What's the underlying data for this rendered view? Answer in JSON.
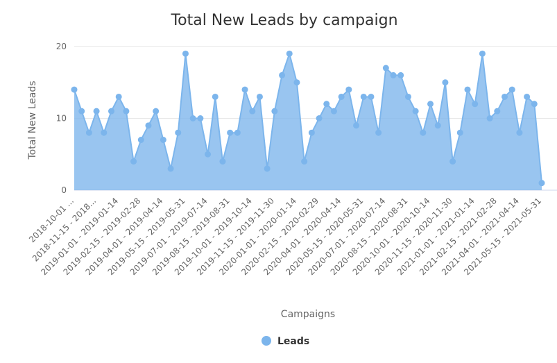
{
  "chart_data": {
    "type": "area",
    "title": "Total New Leads by campaign",
    "xlabel": "Campaigns",
    "ylabel": "Total New Leads",
    "ylim": [
      0,
      20
    ],
    "yticks": [
      0,
      10,
      20
    ],
    "grid": true,
    "legend": "bottom-center",
    "tick_labels": [
      "2018-10-01 ...",
      "2018-11-15 - 2018...",
      "2019-01-01 - 2019-01-14",
      "2019-02-15 - 2019-02-28",
      "2019-04-01 - 2019-04-14",
      "2019-05-15 - 2019-05-31",
      "2019-07-01 - 2019-07-14",
      "2019-08-15 - 2019-08-31",
      "2019-10-01 - 2019-10-14",
      "2019-11-15 - 2019-11-30",
      "2020-01-01 - 2020-01-14",
      "2020-02-15 - 2020-02-29",
      "2020-04-01 - 2020-04-14",
      "2020-05-15 - 2020-05-31",
      "2020-07-01 - 2020-07-14",
      "2020-08-15 - 2020-08-31",
      "2020-10-01 - 2020-10-14",
      "2020-11-15 - 2020-11-30",
      "2021-01-01 - 2021-01-14",
      "2021-02-15 - 2021-02-28",
      "2021-04-01 - 2021-04-14",
      "2021-05-15 - 2021-05-31"
    ],
    "series": [
      {
        "name": "Leads",
        "color": "#7cb5ec",
        "values": [
          14,
          11,
          8,
          11,
          8,
          11,
          13,
          11,
          4,
          7,
          9,
          11,
          7,
          3,
          8,
          19,
          10,
          10,
          5,
          13,
          4,
          8,
          8,
          14,
          11,
          13,
          3,
          11,
          16,
          19,
          15,
          4,
          8,
          10,
          12,
          11,
          13,
          14,
          9,
          13,
          13,
          8,
          17,
          16,
          16,
          13,
          11,
          8,
          12,
          9,
          15,
          4,
          8,
          14,
          12,
          19,
          10,
          11,
          13,
          14,
          8,
          13,
          12,
          1
        ]
      }
    ]
  }
}
